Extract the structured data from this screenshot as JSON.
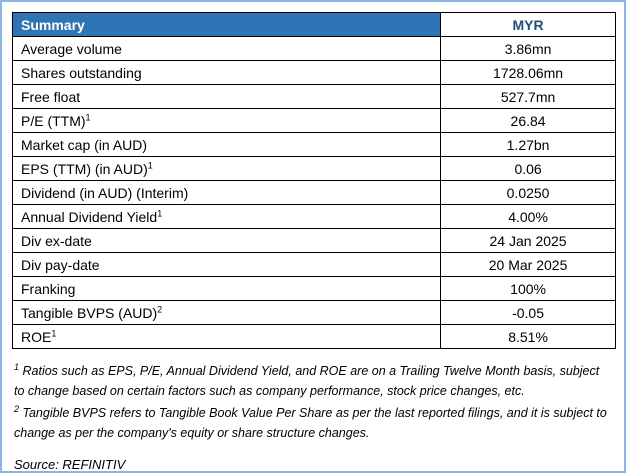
{
  "theme": {
    "header_bg": "#2E75B6",
    "header_text": "#FFFFFF",
    "myr_text": "#1F4E79",
    "outer_border": "#8EB4E3",
    "cell_border": "#000000"
  },
  "table": {
    "header": {
      "left": "Summary",
      "right": "MYR"
    },
    "rows": [
      {
        "label": "Average volume",
        "sup": "",
        "value": "3.86mn"
      },
      {
        "label": "Shares outstanding",
        "sup": "",
        "value": "1728.06mn"
      },
      {
        "label": "Free float",
        "sup": "",
        "value": "527.7mn"
      },
      {
        "label": "P/E (TTM)",
        "sup": "1",
        "value": "26.84"
      },
      {
        "label": "Market cap (in AUD)",
        "sup": "",
        "value": "1.27bn"
      },
      {
        "label": "EPS (TTM) (in AUD)",
        "sup": "1",
        "value": "0.06"
      },
      {
        "label": "Dividend (in AUD) (Interim)",
        "sup": "",
        "value": "0.0250"
      },
      {
        "label": "Annual Dividend Yield",
        "sup": "1",
        "value": "4.00%"
      },
      {
        "label": "Div ex-date",
        "sup": "",
        "value": "24 Jan 2025"
      },
      {
        "label": "Div pay-date",
        "sup": "",
        "value": "20 Mar 2025"
      },
      {
        "label": "Franking",
        "sup": "",
        "value": "100%"
      },
      {
        "label": "Tangible BVPS (AUD)",
        "sup": "2",
        "value": "-0.05"
      },
      {
        "label": "ROE",
        "sup": "1",
        "value": "8.51%"
      }
    ]
  },
  "footnotes": [
    {
      "sup": "1",
      "text": " Ratios such as EPS, P/E,  Annual Dividend Yield, and ROE are on a Trailing Twelve Month basis, subject to change based on certain factors such as company performance, stock price changes, etc."
    },
    {
      "sup": "2",
      "text": " Tangible BVPS refers to Tangible Book Value Per Share as per the last reported filings, and it is subject to change as per the company's equity or share structure changes."
    }
  ],
  "source": "Source: REFINITIV"
}
